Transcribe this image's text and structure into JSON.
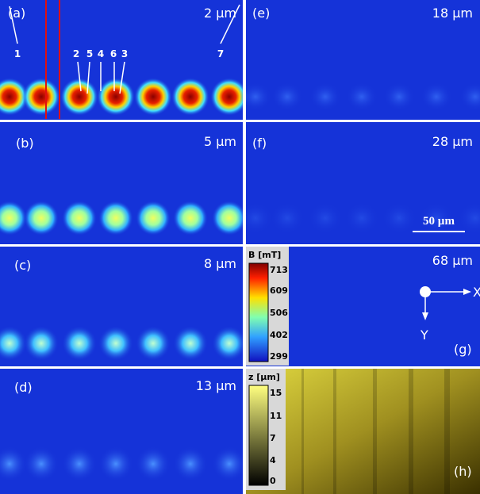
{
  "panels": [
    {
      "label": "(a)",
      "depth": "2 µm"
    },
    {
      "label": "(b)",
      "depth": "5 µm"
    },
    {
      "label": "(c)",
      "depth": "8 µm"
    },
    {
      "label": "(d)",
      "depth": "13 µm"
    },
    {
      "label": "(e)",
      "depth": "18 µm"
    },
    {
      "label": "(f)",
      "depth": "28 µm"
    },
    {
      "label": "(g)",
      "depth": "68 µm"
    },
    {
      "label": "(h)"
    }
  ],
  "point_labels": [
    "1",
    "2",
    "5",
    "4",
    "6",
    "3",
    "7"
  ],
  "scale_bar": "50 µm",
  "axes": {
    "x": "X",
    "y": "Y"
  },
  "colorbar_B": {
    "title": "B [mT]",
    "ticks": [
      "713",
      "609",
      "506",
      "402",
      "299"
    ]
  },
  "colorbar_z": {
    "title": "z [µm]",
    "ticks": [
      "15",
      "11",
      "7",
      "4",
      "0"
    ]
  }
}
